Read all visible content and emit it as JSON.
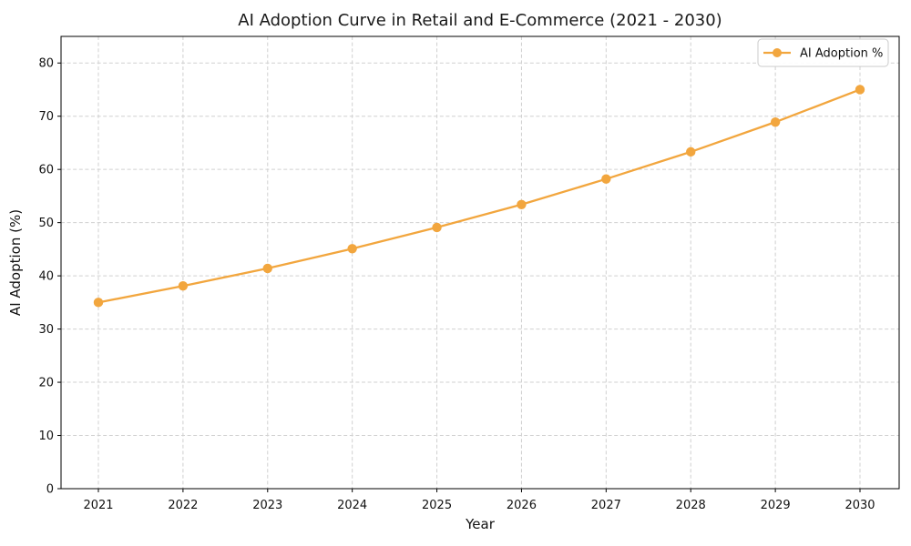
{
  "figure": {
    "background": "#ffffff"
  },
  "chart_data": {
    "type": "line",
    "title": "AI Adoption Curve in Retail and E-Commerce (2021 - 2030)",
    "xlabel": "Year",
    "ylabel": "AI Adoption (%)",
    "categories": [
      "2021",
      "2022",
      "2023",
      "2024",
      "2025",
      "2026",
      "2027",
      "2028",
      "2029",
      "2030"
    ],
    "series": [
      {
        "name": "AI Adoption %",
        "values": [
          35,
          38.1,
          41.4,
          45.1,
          49.1,
          53.4,
          58.2,
          63.3,
          68.9,
          75
        ]
      }
    ],
    "ylim": [
      0,
      85
    ],
    "y_ticks": [
      0,
      10,
      20,
      30,
      40,
      50,
      60,
      70,
      80
    ],
    "grid": "dashed",
    "legend_position": "upper right",
    "marker": "circle",
    "colors": {
      "line": "#f2a63e",
      "marker": "#f2a63e",
      "grid": "#d0d0d0",
      "spine": "#000000",
      "text": "#111111",
      "background": "#ffffff"
    }
  }
}
